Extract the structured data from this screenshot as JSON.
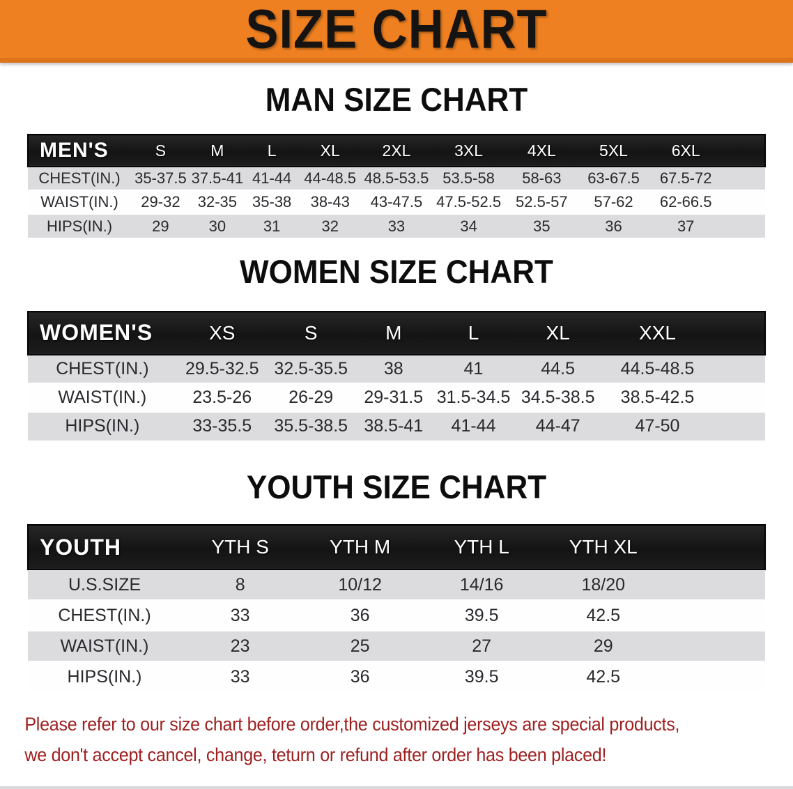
{
  "banner": {
    "title": "SIZE CHART"
  },
  "colors": {
    "banner_bg": "#EF8021",
    "banner_border": "#DE741A",
    "header_bar": "#191919",
    "row_stripe": "#DCDCDE",
    "disclaimer_text": "#9E1F1F"
  },
  "sections": [
    {
      "title": "MAN SIZE CHART",
      "table": {
        "header": [
          "MEN'S",
          "S",
          "M",
          "L",
          "XL",
          "2XL",
          "3XL",
          "4XL",
          "5XL",
          "6XL"
        ],
        "rows": [
          [
            "CHEST(IN.)",
            "35-37.5",
            "37.5-41",
            "41-44",
            "44-48.5",
            "48.5-53.5",
            "53.5-58",
            "58-63",
            "63-67.5",
            "67.5-72"
          ],
          [
            "WAIST(IN.)",
            "29-32",
            "32-35",
            "35-38",
            "38-43",
            "43-47.5",
            "47.5-52.5",
            "52.5-57",
            "57-62",
            "62-66.5"
          ],
          [
            "HIPS(IN.)",
            "29",
            "30",
            "31",
            "32",
            "33",
            "34",
            "35",
            "36",
            "37"
          ]
        ]
      }
    },
    {
      "title": "WOMEN SIZE CHART",
      "table": {
        "header": [
          "WOMEN'S",
          "XS",
          "S",
          "M",
          "L",
          "XL",
          "XXL"
        ],
        "rows": [
          [
            "CHEST(IN.)",
            "29.5-32.5",
            "32.5-35.5",
            "38",
            "41",
            "44.5",
            "44.5-48.5"
          ],
          [
            "WAIST(IN.)",
            "23.5-26",
            "26-29",
            "29-31.5",
            "31.5-34.5",
            "34.5-38.5",
            "38.5-42.5"
          ],
          [
            "HIPS(IN.)",
            "33-35.5",
            "35.5-38.5",
            "38.5-41",
            "41-44",
            "44-47",
            "47-50"
          ]
        ]
      }
    },
    {
      "title": "YOUTH SIZE CHART",
      "table": {
        "header": [
          "YOUTH",
          "YTH S",
          "YTH M",
          "YTH L",
          "YTH XL"
        ],
        "rows": [
          [
            "U.S.SIZE",
            "8",
            "10/12",
            "14/16",
            "18/20"
          ],
          [
            "CHEST(IN.)",
            "33",
            "36",
            "39.5",
            "42.5"
          ],
          [
            "WAIST(IN.)",
            "23",
            "25",
            "27",
            "29"
          ],
          [
            "HIPS(IN.)",
            "33",
            "36",
            "39.5",
            "42.5"
          ]
        ]
      }
    }
  ],
  "disclaimer": {
    "lines": [
      "Please refer to our size chart before order,the customized jerseys are special products,",
      "we don't accept cancel, change, teturn or refund after order has been placed!"
    ]
  }
}
